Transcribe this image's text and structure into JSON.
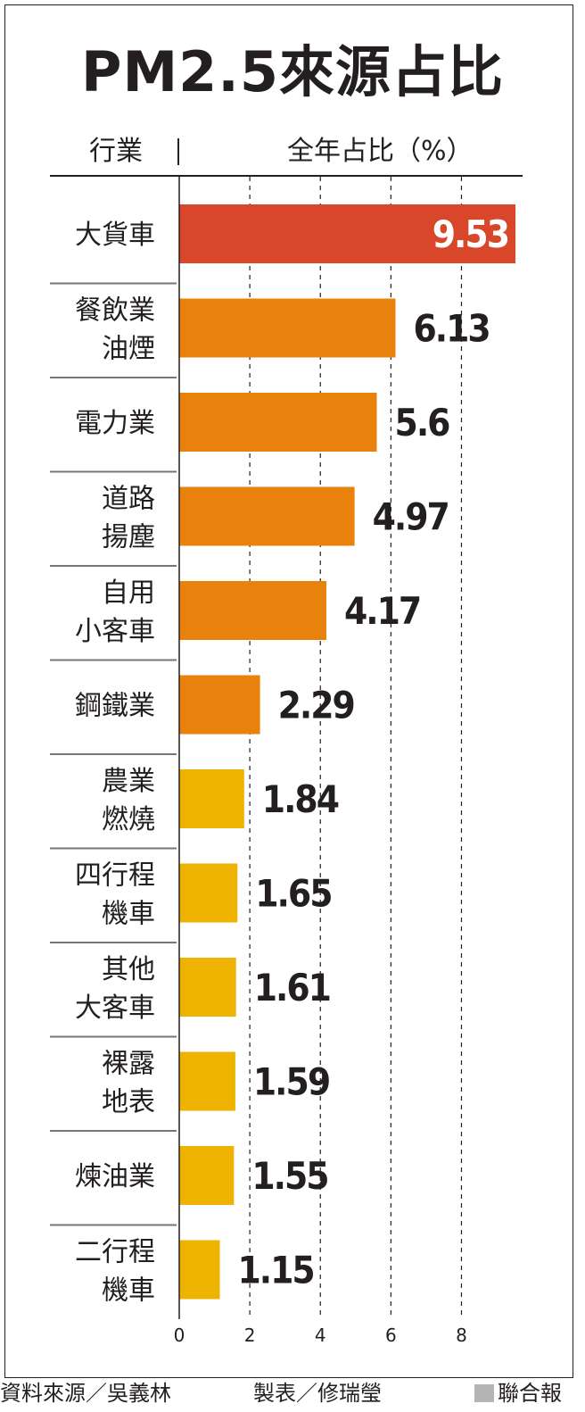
{
  "chart_data": {
    "type": "bar",
    "orientation": "horizontal",
    "title": "PM2.5來源占比",
    "category_header": "行業",
    "value_header": "全年占比（%）",
    "categories": [
      [
        "大貨車"
      ],
      [
        "餐飲業",
        "油煙"
      ],
      [
        "電力業"
      ],
      [
        "道路",
        "揚塵"
      ],
      [
        "自用",
        "小客車"
      ],
      [
        "鋼鐵業"
      ],
      [
        "農業",
        "燃燒"
      ],
      [
        "四行程",
        "機車"
      ],
      [
        "其他",
        "大客車"
      ],
      [
        "裸露",
        "地表"
      ],
      [
        "煉油業"
      ],
      [
        "二行程",
        "機車"
      ]
    ],
    "values": [
      9.53,
      6.13,
      5.6,
      4.97,
      4.17,
      2.29,
      1.84,
      1.65,
      1.61,
      1.59,
      1.55,
      1.15
    ],
    "value_labels": [
      "9.53",
      "6.13",
      "5.6",
      "4.97",
      "4.17",
      "2.29",
      "1.84",
      "1.65",
      "1.61",
      "1.59",
      "1.55",
      "1.15"
    ],
    "bar_colors": [
      "#d9472b",
      "#e8820c",
      "#e8820c",
      "#e8820c",
      "#e8820c",
      "#e8820c",
      "#eeb200",
      "#eeb200",
      "#eeb200",
      "#eeb200",
      "#eeb200",
      "#eeb200"
    ],
    "value_label_colors": [
      "#ffffff",
      "#231f20",
      "#231f20",
      "#231f20",
      "#231f20",
      "#231f20",
      "#231f20",
      "#231f20",
      "#231f20",
      "#231f20",
      "#231f20",
      "#231f20"
    ],
    "xlim": [
      0,
      9.53
    ],
    "xticks": [
      0,
      2,
      4,
      6,
      8
    ],
    "grid": "vertical-dashed",
    "legend": "none"
  },
  "footer": {
    "source": "資料來源／吳義林",
    "made_by": "製表／修瑞瑩",
    "brand": "聯合報"
  }
}
